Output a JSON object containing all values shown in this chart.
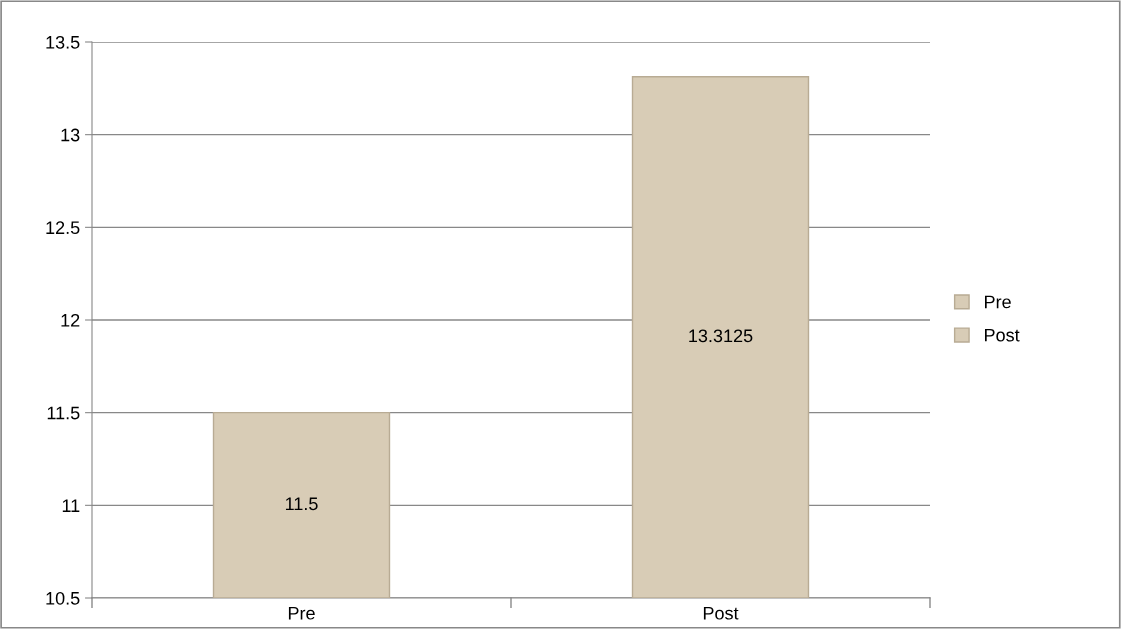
{
  "chart_data": {
    "type": "bar",
    "categories": [
      "Pre",
      "Post"
    ],
    "series": [
      {
        "name": "Pre",
        "color": "#d8ccb6",
        "values": [
          11.5,
          null
        ]
      },
      {
        "name": "Post",
        "color": "#d8ccb6",
        "values": [
          null,
          13.3125
        ]
      }
    ],
    "ylim": [
      10.5,
      13.5
    ],
    "yticks": [
      10.5,
      11,
      11.5,
      12,
      12.5,
      13,
      13.5
    ],
    "grid": "y",
    "legend": "right",
    "data_labels": true
  }
}
